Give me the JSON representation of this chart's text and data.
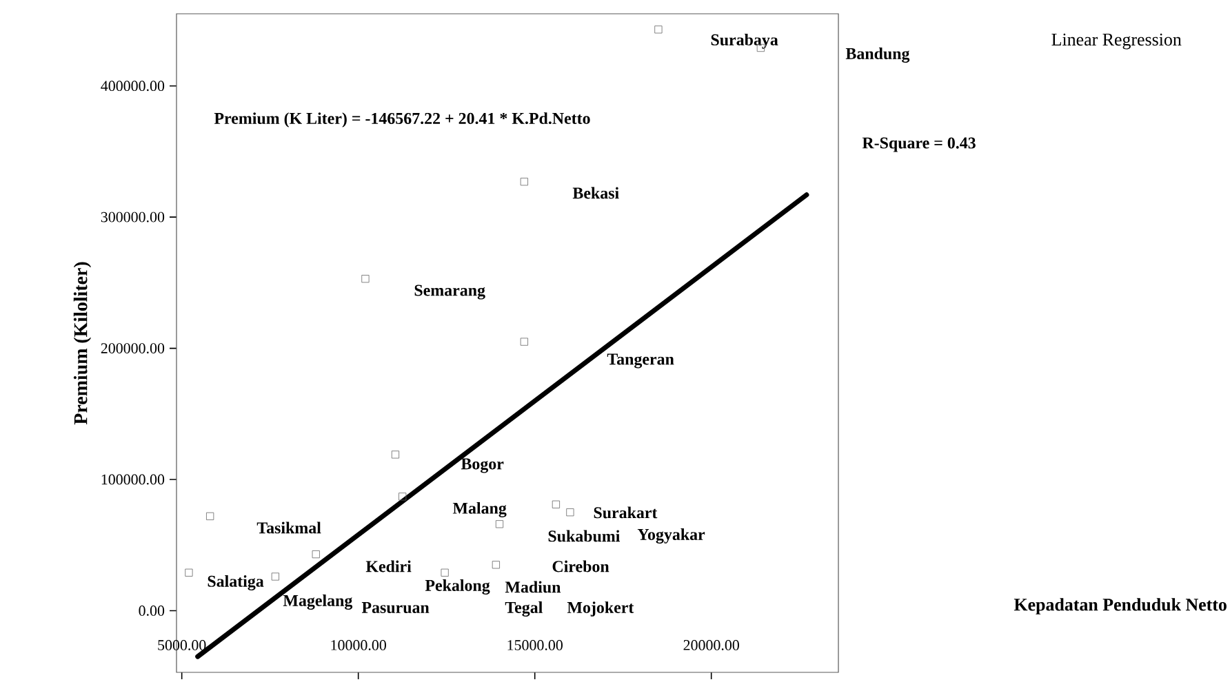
{
  "chart_data": {
    "type": "scatter",
    "title": "Linear Regression",
    "ylabel": "Premium (Kiloliter)",
    "xlim": [
      4850,
      23600
    ],
    "ylim": [
      -47000,
      455000
    ],
    "xticks": [
      {
        "value": 5000,
        "label": "5000.00"
      },
      {
        "value": 10000,
        "label": "10000.00"
      },
      {
        "value": 15000,
        "label": "15000.00"
      },
      {
        "value": 20000,
        "label": "20000.00"
      }
    ],
    "yticks": [
      {
        "value": 0,
        "label": "0.00"
      },
      {
        "value": 100000,
        "label": "100000.00"
      },
      {
        "value": 200000,
        "label": "200000.00"
      },
      {
        "value": 300000,
        "label": "300000.00"
      },
      {
        "value": 400000,
        "label": "400000.00"
      }
    ],
    "marker": "square",
    "grid": false,
    "series": [
      {
        "color": "#666666",
        "x": [
          18500,
          21400,
          14700,
          10200,
          14700,
          11050,
          11250,
          5800,
          5200,
          8800,
          12450,
          13900,
          15600,
          16000,
          14000,
          7650
        ],
        "values": [
          443000,
          429000,
          327000,
          253000,
          205000,
          119000,
          87000,
          72000,
          29000,
          43000,
          29000,
          35000,
          81000,
          75000,
          66000,
          26000
        ]
      },
      {
        "type": "line",
        "color": "#000000",
        "marker": "none",
        "x": [
          5450,
          22700
        ],
        "values": [
          -35000,
          317000
        ]
      }
    ],
    "annotations": [
      "Premium (K Liter) = -146567.22 + 20.41 * K.Pd.Netto",
      "R-Square = 0.43",
      "Kepadatan Penduduk  Netto",
      "Surabaya",
      "Bandung",
      "Bekasi",
      "Semarang",
      "Tangeran",
      "Bogor",
      "Malang",
      "Tasikmal",
      "Surakart",
      "Yogyakar",
      "Sukabumi",
      "Kediri",
      "Cirebon",
      "Salatiga",
      "Magelang",
      "Pasuruan",
      "Pekalong",
      "Madiun",
      "Tegal",
      "Mojokert"
    ]
  }
}
